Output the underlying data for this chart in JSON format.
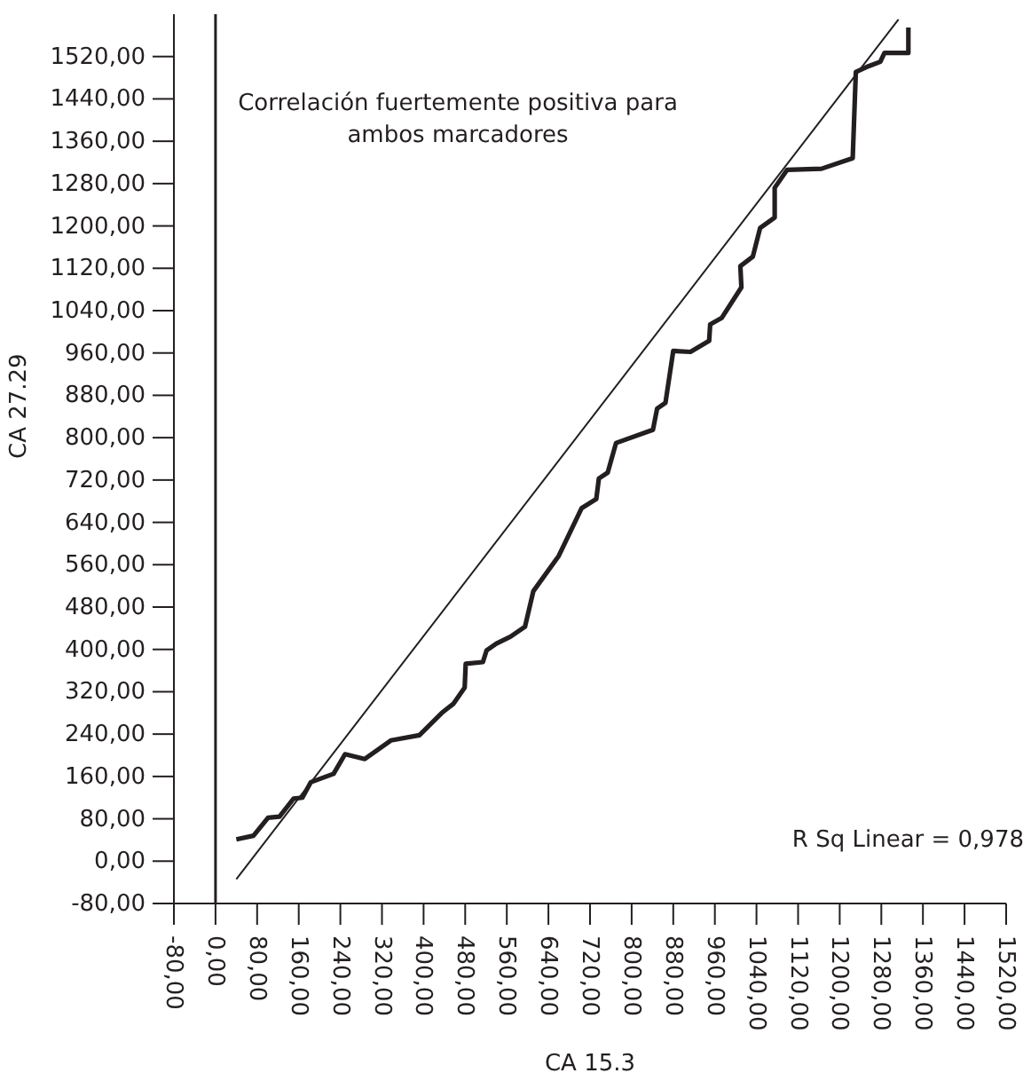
{
  "chart_data": {
    "type": "line",
    "xlabel": "CA 15.3",
    "ylabel": "CA 27.29",
    "annotations": [
      "Correlación fuertemente positiva para ambos marcadores",
      "R Sq Linear = 0,978"
    ],
    "xlim": [
      -80,
      1520
    ],
    "ylim": [
      -80,
      1600
    ],
    "xticks": [
      {
        "value": -80,
        "label": "-80,00"
      },
      {
        "value": 0,
        "label": "0,00"
      },
      {
        "value": 80,
        "label": "80,00"
      },
      {
        "value": 160,
        "label": "160,00"
      },
      {
        "value": 240,
        "label": "240,00"
      },
      {
        "value": 320,
        "label": "320,00"
      },
      {
        "value": 400,
        "label": "400,00"
      },
      {
        "value": 480,
        "label": "480,00"
      },
      {
        "value": 560,
        "label": "560,00"
      },
      {
        "value": 640,
        "label": "640,00"
      },
      {
        "value": 720,
        "label": "720,00"
      },
      {
        "value": 800,
        "label": "800,00"
      },
      {
        "value": 880,
        "label": "880,00"
      },
      {
        "value": 960,
        "label": "960,00"
      },
      {
        "value": 1040,
        "label": "1040,00"
      },
      {
        "value": 1120,
        "label": "1120,00"
      },
      {
        "value": 1200,
        "label": "1200,00"
      },
      {
        "value": 1280,
        "label": "1280,00"
      },
      {
        "value": 1360,
        "label": "1360,00"
      },
      {
        "value": 1440,
        "label": "1440,00"
      },
      {
        "value": 1520,
        "label": "1520,00"
      }
    ],
    "yticks": [
      {
        "value": -80,
        "label": "-80,00"
      },
      {
        "value": 0,
        "label": "0,00"
      },
      {
        "value": 80,
        "label": "80,00"
      },
      {
        "value": 160,
        "label": "160,00"
      },
      {
        "value": 240,
        "label": "240,00"
      },
      {
        "value": 320,
        "label": "320,00"
      },
      {
        "value": 400,
        "label": "400,00"
      },
      {
        "value": 480,
        "label": "480,00"
      },
      {
        "value": 560,
        "label": "560,00"
      },
      {
        "value": 640,
        "label": "640,00"
      },
      {
        "value": 720,
        "label": "720,00"
      },
      {
        "value": 800,
        "label": "800,00"
      },
      {
        "value": 880,
        "label": "880,00"
      },
      {
        "value": 960,
        "label": "960,00"
      },
      {
        "value": 1040,
        "label": "1040,00"
      },
      {
        "value": 1120,
        "label": "1120,00"
      },
      {
        "value": 1200,
        "label": "1200,00"
      },
      {
        "value": 1280,
        "label": "1280,00"
      },
      {
        "value": 1360,
        "label": "1360,00"
      },
      {
        "value": 1440,
        "label": "1440,00"
      },
      {
        "value": 1520,
        "label": "1520,00"
      }
    ],
    "ref_lines": [
      {
        "axis": "x",
        "value": 0,
        "color": "#231f20"
      }
    ],
    "marker": "none",
    "line_style": "solid",
    "series": [
      {
        "color": "#231f20",
        "x": [
          40,
          73,
          101,
          123,
          150,
          167,
          183,
          227,
          249,
          287,
          337,
          392,
          435,
          457,
          479,
          481,
          514,
          521,
          540,
          567,
          595,
          611,
          660,
          704,
          732,
          737,
          754,
          770,
          841,
          849,
          865,
          880,
          913,
          949,
          951,
          973,
          1011,
          1009,
          1033,
          1047,
          1075,
          1075,
          1099,
          1165,
          1225,
          1231,
          1256,
          1278,
          1286,
          1332,
          1332
        ],
        "values": [
          41,
          48,
          82,
          84,
          118,
          120,
          149,
          165,
          202,
          193,
          228,
          238,
          280,
          297,
          328,
          373,
          376,
          398,
          411,
          424,
          443,
          510,
          577,
          667,
          684,
          723,
          734,
          790,
          815,
          855,
          866,
          964,
          962,
          983,
          1014,
          1026,
          1084,
          1124,
          1142,
          1196,
          1216,
          1272,
          1306,
          1308,
          1328,
          1491,
          1502,
          1510,
          1527,
          1527,
          1575
        ]
      },
      {
        "type": "line",
        "color": "#231f20",
        "x": [
          40,
          1313
        ],
        "values": [
          -34,
          1590
        ]
      }
    ]
  }
}
